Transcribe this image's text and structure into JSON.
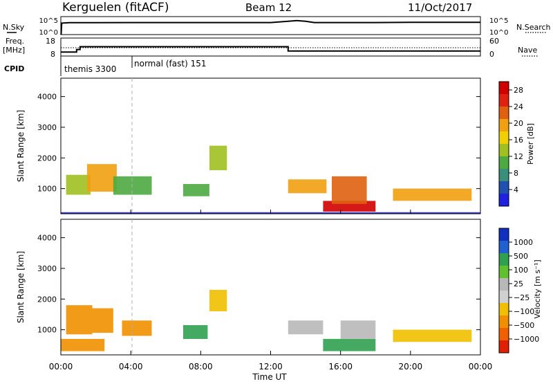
{
  "header": {
    "title": "Kerguelen (fitACF)",
    "beam": "Beam 12",
    "date": "11/Oct/2017"
  },
  "noise_panel": {
    "left_label": "N.Sky",
    "left_ticks": [
      "10^5",
      "10^0"
    ],
    "right_ticks": [
      "10^5",
      "10^0"
    ],
    "right_label": "N.Search"
  },
  "freq_panel": {
    "left_label_1": "Freq.",
    "left_label_2": "[MHz]",
    "left_ticks": [
      "18",
      "8"
    ],
    "right_ticks": [
      "60",
      "0"
    ],
    "right_label": "Nave"
  },
  "cpid": {
    "label": "CPID",
    "segments": [
      {
        "text": "themis 3300"
      },
      {
        "text": "normal (fast) 151"
      }
    ]
  },
  "time_axis": {
    "ticks": [
      "00:00",
      "04:00",
      "08:00",
      "12:00",
      "16:00",
      "20:00",
      "00:00"
    ],
    "label": "Time UT"
  },
  "range_axis": {
    "label": "Slant Range [km]",
    "ticks": [
      "1000",
      "2000",
      "3000",
      "4000"
    ]
  },
  "power_colorbar": {
    "label": "Power [dB]",
    "ticks": [
      "4",
      "8",
      "12",
      "16",
      "20",
      "24",
      "28"
    ],
    "colors": [
      "#2020e0",
      "#2050b0",
      "#3a8f7a",
      "#4caa40",
      "#a0c020",
      "#f0d000",
      "#f0a010",
      "#e06010",
      "#e02010",
      "#d00000"
    ]
  },
  "velocity_colorbar": {
    "label": "Velocity [m s⁻¹]",
    "ticks": [
      "1000",
      "500",
      "100",
      "25",
      "−25",
      "−100",
      "−500",
      "−1000"
    ],
    "colors": [
      "#1030c0",
      "#2060d0",
      "#30a050",
      "#60c030",
      "#b8b8b8",
      "#d0d0d0",
      "#f0c000",
      "#f09000",
      "#f06000",
      "#e02000"
    ]
  },
  "chart_data": [
    {
      "type": "line",
      "title": "N.Sky",
      "xlabel": "Time UT",
      "ylabel": "N.Sky",
      "ylim_log10": [
        0,
        5
      ],
      "x": [
        0.0,
        0.02,
        0.05,
        0.5,
        1.0,
        2.0,
        4.0,
        6.0,
        8.0,
        10.0,
        12.0,
        13.0,
        13.5,
        14.0,
        14.5,
        16.0,
        18.0,
        20.0,
        22.0,
        24.0
      ],
      "series": [
        {
          "name": "N.Sky",
          "log10_values": [
            0.0,
            0.3,
            3.2,
            3.3,
            3.3,
            3.3,
            3.35,
            3.35,
            3.35,
            3.35,
            3.35,
            3.7,
            3.9,
            3.7,
            3.35,
            3.35,
            3.35,
            3.4,
            3.4,
            3.4
          ]
        }
      ]
    },
    {
      "type": "line",
      "title": "Freq.",
      "xlabel": "Time UT",
      "ylabel": "[MHz]",
      "ylim": [
        8,
        18
      ],
      "x": [
        0.0,
        0.9,
        0.9,
        1.1,
        1.1,
        13.0,
        13.0,
        24.0
      ],
      "series": [
        {
          "name": "Freq.",
          "values": [
            10.2,
            10.2,
            11.6,
            11.6,
            13.2,
            13.2,
            10.8,
            10.8
          ]
        }
      ]
    },
    {
      "type": "heatmap",
      "title": "Power [dB]",
      "xlabel": "Time UT",
      "ylabel": "Slant Range [km]",
      "xlim": [
        0,
        24
      ],
      "ylim": [
        180,
        4600
      ],
      "zlim": [
        0,
        30
      ],
      "patches": [
        {
          "t0": 0.3,
          "t1": 1.7,
          "r0": 800,
          "r1": 1450,
          "level": 14
        },
        {
          "t0": 1.5,
          "t1": 3.2,
          "r0": 900,
          "r1": 1800,
          "level": 18
        },
        {
          "t0": 3.0,
          "t1": 5.2,
          "r0": 800,
          "r1": 1400,
          "level": 10
        },
        {
          "t0": 7.0,
          "t1": 8.5,
          "r0": 750,
          "r1": 1150,
          "level": 9
        },
        {
          "t0": 8.5,
          "t1": 9.5,
          "r0": 1600,
          "r1": 2400,
          "level": 12
        },
        {
          "t0": 13.0,
          "t1": 15.2,
          "r0": 850,
          "r1": 1300,
          "level": 18
        },
        {
          "t0": 15.0,
          "t1": 18.0,
          "r0": 250,
          "r1": 600,
          "level": 28
        },
        {
          "t0": 15.5,
          "t1": 17.5,
          "r0": 500,
          "r1": 1400,
          "level": 22
        },
        {
          "t0": 19.0,
          "t1": 23.5,
          "r0": 600,
          "r1": 1000,
          "level": 18
        },
        {
          "t0": 0.0,
          "t1": 24.0,
          "r0": 180,
          "r1": 230,
          "level": 2
        }
      ]
    },
    {
      "type": "heatmap",
      "title": "Velocity [m s⁻¹]",
      "xlabel": "Time UT",
      "ylabel": "Slant Range [km]",
      "xlim": [
        0,
        24
      ],
      "ylim": [
        180,
        4600
      ],
      "zlim": [
        -1000,
        1000
      ],
      "patches": [
        {
          "t0": 0.3,
          "t1": 1.8,
          "r0": 850,
          "r1": 1800,
          "value": -300
        },
        {
          "t0": 1.8,
          "t1": 3.0,
          "r0": 900,
          "r1": 1700,
          "value": -250
        },
        {
          "t0": 3.5,
          "t1": 5.2,
          "r0": 800,
          "r1": 1300,
          "value": -120
        },
        {
          "t0": 7.0,
          "t1": 8.4,
          "r0": 700,
          "r1": 1150,
          "value": 80
        },
        {
          "t0": 8.5,
          "t1": 9.5,
          "r0": 1600,
          "r1": 2300,
          "value": -60
        },
        {
          "t0": 13.0,
          "t1": 15.0,
          "r0": 850,
          "r1": 1300,
          "value": 10
        },
        {
          "t0": 15.0,
          "t1": 18.0,
          "r0": 300,
          "r1": 700,
          "value": 90
        },
        {
          "t0": 16.0,
          "t1": 18.0,
          "r0": 700,
          "r1": 1300,
          "value": 20
        },
        {
          "t0": 19.0,
          "t1": 23.5,
          "r0": 600,
          "r1": 1000,
          "value": -40
        },
        {
          "t0": 0.0,
          "t1": 2.5,
          "r0": 300,
          "r1": 700,
          "value": -150
        }
      ]
    }
  ]
}
